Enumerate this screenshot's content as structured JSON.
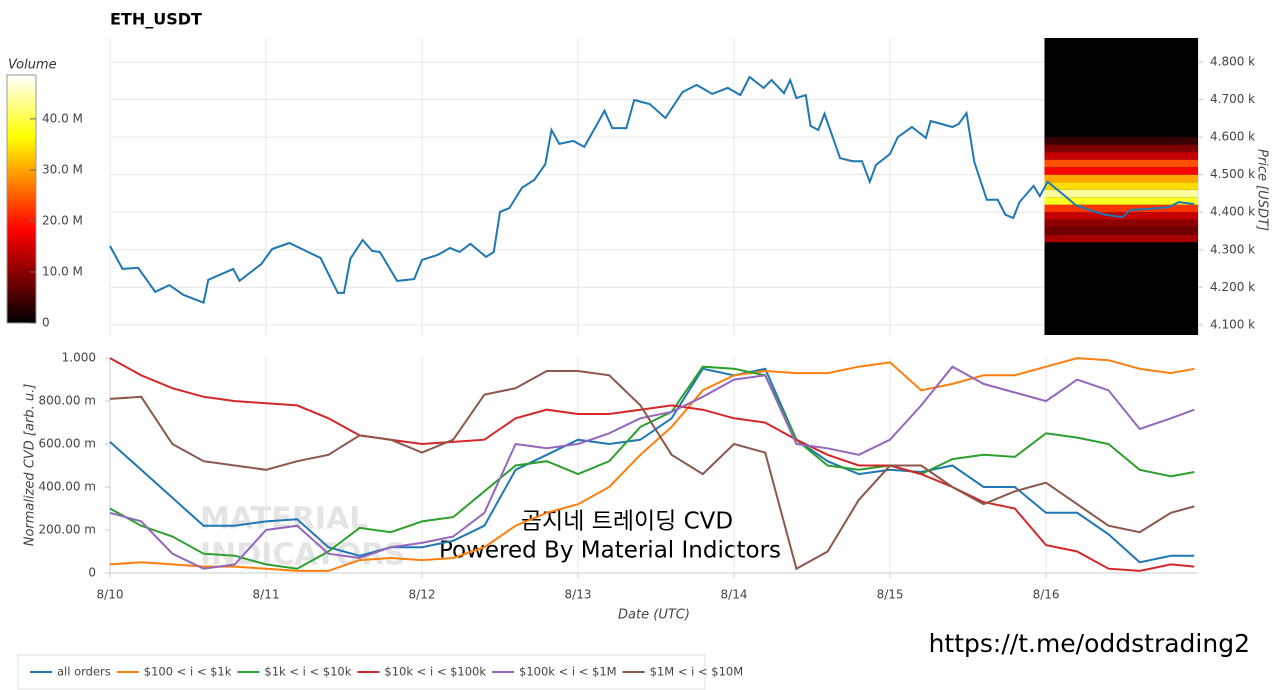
{
  "chart_data": [
    {
      "type": "line",
      "title": "ETH_USDT",
      "y_label": "Price [USDT]",
      "color": "#1f77b4",
      "grid": "both",
      "x": [
        0,
        0.08,
        0.18,
        0.29,
        0.38,
        0.47,
        0.6,
        0.63,
        0.79,
        0.83,
        0.97,
        1.04,
        1.15,
        1.27,
        1.35,
        1.46,
        1.5,
        1.54,
        1.62,
        1.68,
        1.73,
        1.84,
        1.95,
        2.0,
        2.1,
        2.18,
        2.24,
        2.31,
        2.41,
        2.46,
        2.5,
        2.56,
        2.64,
        2.72,
        2.79,
        2.83,
        2.88,
        2.97,
        3.04,
        3.13,
        3.17,
        3.22,
        3.31,
        3.36,
        3.46,
        3.56,
        3.67,
        3.76,
        3.86,
        3.96,
        4.04,
        4.1,
        4.19,
        4.24,
        4.32,
        4.36,
        4.4,
        4.46,
        4.49,
        4.54,
        4.58,
        4.68,
        4.76,
        4.82,
        4.87,
        4.91,
        5.0,
        5.05,
        5.14,
        5.23,
        5.26,
        5.4,
        5.44,
        5.49,
        5.54,
        5.62,
        5.69,
        5.74,
        5.79,
        5.83,
        5.92,
        5.96,
        6.01,
        6.1,
        6.19,
        6.28,
        6.38,
        6.49,
        6.54,
        6.67,
        6.79,
        6.85,
        6.95
      ],
      "values": [
        4310,
        4249,
        4252,
        4188,
        4206,
        4180,
        4159,
        4220,
        4249,
        4217,
        4262,
        4302,
        4318,
        4294,
        4278,
        4185,
        4185,
        4276,
        4326,
        4297,
        4294,
        4217,
        4222,
        4273,
        4286,
        4305,
        4294,
        4316,
        4281,
        4294,
        4401,
        4411,
        4465,
        4486,
        4528,
        4619,
        4582,
        4590,
        4574,
        4640,
        4670,
        4624,
        4624,
        4699,
        4688,
        4651,
        4720,
        4739,
        4715,
        4731,
        4712,
        4760,
        4731,
        4752,
        4717,
        4752,
        4704,
        4712,
        4630,
        4619,
        4662,
        4544,
        4536,
        4536,
        4481,
        4526,
        4555,
        4600,
        4627,
        4598,
        4643,
        4627,
        4635,
        4664,
        4534,
        4433,
        4433,
        4393,
        4385,
        4427,
        4470,
        4443,
        4481,
        4451,
        4419,
        4406,
        4393,
        4387,
        4406,
        4409,
        4414,
        4427,
        4422
      ],
      "xlim": [
        0,
        6.974
      ],
      "xticks": [
        0,
        1,
        2,
        3,
        4,
        5,
        6
      ],
      "ylim": [
        4073,
        4864
      ],
      "yticks": [
        {
          "value": 4100,
          "label": "4.100 k"
        },
        {
          "value": 4200,
          "label": "4.200 k"
        },
        {
          "value": 4300,
          "label": "4.300 k"
        },
        {
          "value": 4400,
          "label": "4.400 k"
        },
        {
          "value": 4500,
          "label": "4.500 k"
        },
        {
          "value": 4600,
          "label": "4.600 k"
        },
        {
          "value": 4700,
          "label": "4.700 k"
        },
        {
          "value": 4800,
          "label": "4.800 k"
        }
      ],
      "heatmap": {
        "x_range": [
          5.99,
          6.974
        ],
        "price_bins": [
          4320,
          4340,
          4360,
          4380,
          4400,
          4420,
          4440,
          4460,
          4480,
          4500,
          4520,
          4540,
          4560,
          4580,
          4600
        ],
        "volumes": [
          12000000,
          8000000,
          10000000,
          14000000,
          22000000,
          38000000,
          44000000,
          34000000,
          30000000,
          18000000,
          24000000,
          14000000,
          9000000,
          4000000
        ]
      },
      "colorbar": {
        "label": "Volume",
        "clim": [
          0,
          48600000
        ],
        "ticks": [
          0,
          {
            "value": 10000000,
            "label": "10.0 M"
          },
          {
            "value": 20000000,
            "label": "20.0 M"
          },
          {
            "value": 30000000,
            "label": "30.0 M"
          },
          {
            "value": 40000000,
            "label": "40.0 M"
          }
        ]
      }
    },
    {
      "type": "line",
      "x_label": "Date (UTC)",
      "y_label": "Normalized CVD [arb. u.]",
      "grid": "x",
      "legend": "bottom-left",
      "x": [
        0,
        0.2,
        0.4,
        0.6,
        0.8,
        1.0,
        1.2,
        1.4,
        1.6,
        1.8,
        2.0,
        2.2,
        2.4,
        2.6,
        2.8,
        3.0,
        3.2,
        3.4,
        3.6,
        3.8,
        4.0,
        4.2,
        4.4,
        4.6,
        4.8,
        5.0,
        5.2,
        5.4,
        5.6,
        5.8,
        6.0,
        6.2,
        6.4,
        6.6,
        6.8,
        6.95
      ],
      "xlim": [
        0,
        6.974
      ],
      "xticks": [
        {
          "value": 0,
          "label": "8/10"
        },
        {
          "value": 1,
          "label": "8/11"
        },
        {
          "value": 2,
          "label": "8/12"
        },
        {
          "value": 3,
          "label": "8/13"
        },
        {
          "value": 4,
          "label": "8/14"
        },
        {
          "value": 5,
          "label": "8/15"
        },
        {
          "value": 6,
          "label": "8/16"
        }
      ],
      "ylim": [
        0,
        1.005
      ],
      "yticks": [
        0,
        {
          "value": 0.2,
          "label": "200.00 m"
        },
        {
          "value": 0.4,
          "label": "400.00 m"
        },
        {
          "value": 0.6,
          "label": "600.00 m"
        },
        {
          "value": 0.8,
          "label": "800.00 m"
        },
        {
          "value": 1,
          "label": "1.000"
        }
      ],
      "series": [
        {
          "name": "all orders",
          "color": "#1f77b4",
          "values": [
            0.61,
            0.48,
            0.35,
            0.22,
            0.22,
            0.24,
            0.25,
            0.12,
            0.08,
            0.12,
            0.12,
            0.15,
            0.22,
            0.48,
            0.55,
            0.62,
            0.6,
            0.62,
            0.72,
            0.95,
            0.92,
            0.95,
            0.62,
            0.52,
            0.46,
            0.48,
            0.47,
            0.5,
            0.4,
            0.4,
            0.28,
            0.28,
            0.18,
            0.05,
            0.08,
            0.08
          ]
        },
        {
          "name": "$100 < i < $1k",
          "color": "#ff7f0e",
          "values": [
            0.04,
            0.05,
            0.04,
            0.03,
            0.03,
            0.02,
            0.01,
            0.01,
            0.06,
            0.07,
            0.06,
            0.07,
            0.12,
            0.22,
            0.28,
            0.32,
            0.4,
            0.55,
            0.68,
            0.85,
            0.92,
            0.94,
            0.93,
            0.93,
            0.96,
            0.98,
            0.85,
            0.88,
            0.92,
            0.92,
            0.96,
            1.0,
            0.99,
            0.95,
            0.93,
            0.95
          ]
        },
        {
          "name": "$1k < i < $10k",
          "color": "#2ca02c",
          "values": [
            0.3,
            0.22,
            0.17,
            0.09,
            0.08,
            0.04,
            0.02,
            0.1,
            0.21,
            0.19,
            0.24,
            0.26,
            0.38,
            0.5,
            0.52,
            0.46,
            0.52,
            0.68,
            0.75,
            0.96,
            0.95,
            0.92,
            0.62,
            0.5,
            0.48,
            0.5,
            0.46,
            0.53,
            0.55,
            0.54,
            0.65,
            0.63,
            0.6,
            0.48,
            0.45,
            0.47
          ]
        },
        {
          "name": "$10k < i < $100k",
          "color": "#d62728",
          "values": [
            1.0,
            0.92,
            0.86,
            0.82,
            0.8,
            0.79,
            0.78,
            0.72,
            0.64,
            0.62,
            0.6,
            0.61,
            0.62,
            0.72,
            0.76,
            0.74,
            0.74,
            0.76,
            0.78,
            0.76,
            0.72,
            0.7,
            0.62,
            0.55,
            0.5,
            0.5,
            0.46,
            0.4,
            0.33,
            0.3,
            0.13,
            0.1,
            0.02,
            0.01,
            0.04,
            0.03
          ]
        },
        {
          "name": "$100k < i < $1M",
          "color": "#9467bd",
          "values": [
            0.28,
            0.24,
            0.09,
            0.02,
            0.04,
            0.2,
            0.22,
            0.09,
            0.07,
            0.12,
            0.14,
            0.17,
            0.28,
            0.6,
            0.58,
            0.6,
            0.65,
            0.72,
            0.75,
            0.82,
            0.9,
            0.92,
            0.6,
            0.58,
            0.55,
            0.62,
            0.78,
            0.96,
            0.88,
            0.84,
            0.8,
            0.9,
            0.85,
            0.67,
            0.72,
            0.76
          ]
        },
        {
          "name": "$1M < i < $10M",
          "color": "#8c564b",
          "values": [
            0.81,
            0.82,
            0.6,
            0.52,
            0.5,
            0.48,
            0.52,
            0.55,
            0.64,
            0.62,
            0.56,
            0.62,
            0.83,
            0.86,
            0.94,
            0.94,
            0.92,
            0.78,
            0.55,
            0.46,
            0.6,
            0.56,
            0.02,
            0.1,
            0.34,
            0.5,
            0.5,
            0.4,
            0.32,
            0.38,
            0.42,
            0.32,
            0.22,
            0.19,
            0.28,
            0.31
          ]
        }
      ]
    }
  ],
  "watermark": [
    "MATERIAL",
    "INDICATORS"
  ],
  "annotations": [
    "곰지네 트레이딩 CVD",
    "Powered By Material Indictors"
  ],
  "link": "https://t.me/oddstrading2"
}
